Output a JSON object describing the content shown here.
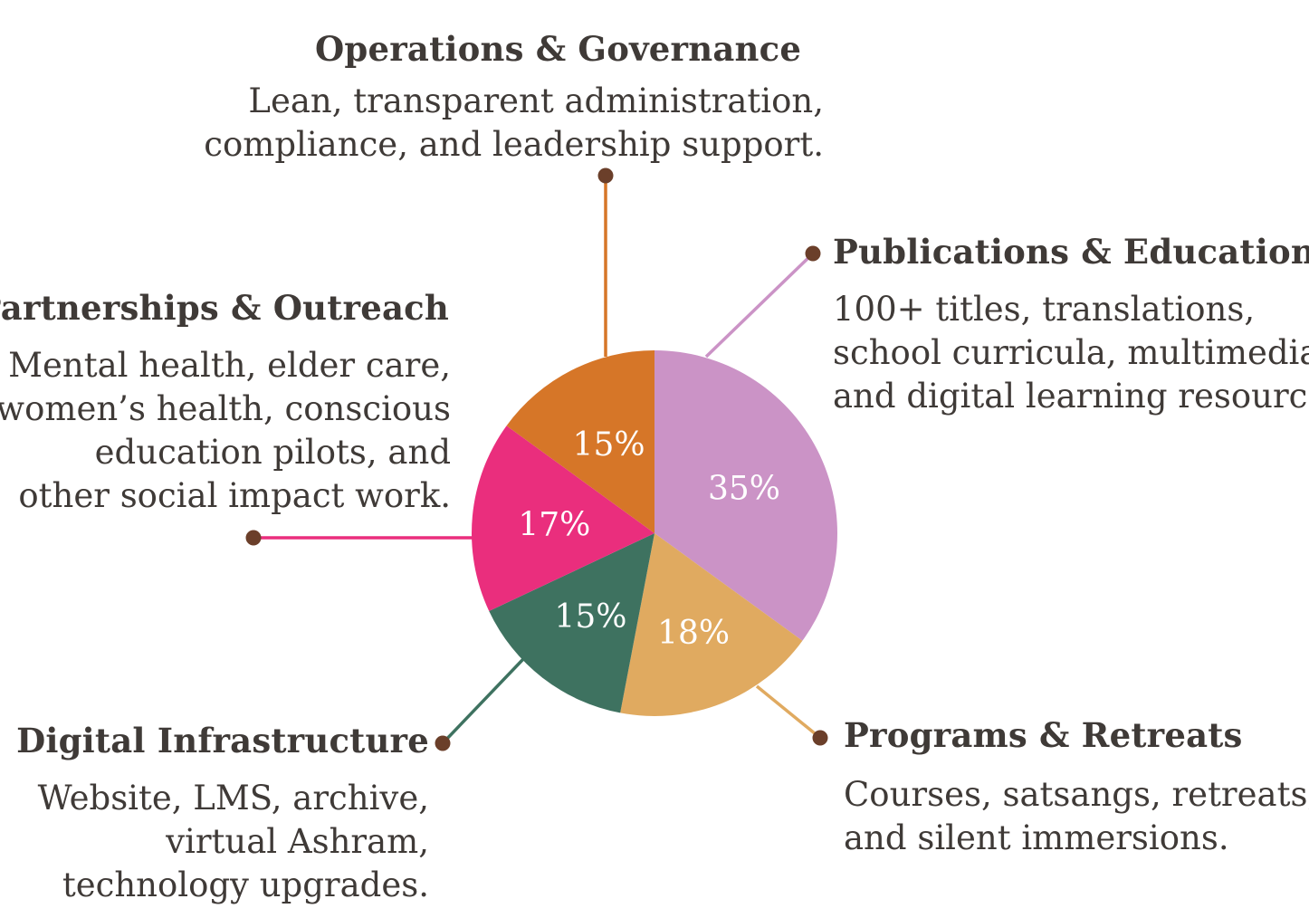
{
  "chart_data": {
    "type": "pie",
    "categories": [
      "Publications & Education",
      "Programs & Retreats",
      "Digital Infrastructure",
      "Partnerships & Outreach",
      "Operations & Governance"
    ],
    "values": [
      35,
      18,
      15,
      17,
      15
    ],
    "data_labels": [
      "35%",
      "18%",
      "15%",
      "17%",
      "15%"
    ],
    "colors": [
      "#cb93c6",
      "#e0aa60",
      "#3e7260",
      "#ea2e7d",
      "#d67628"
    ],
    "descriptions": [
      [
        "100+ titles, translations,",
        "school curricula, multimedia",
        "and digital learning resources."
      ],
      [
        "Courses, satsangs, retreats,",
        "and silent immersions."
      ],
      [
        "Website, LMS, archive,",
        "virtual Ashram,",
        "technology upgrades."
      ],
      [
        "Mental health, elder care,",
        "women’s health, conscious",
        "education pilots, and",
        "other social impact work."
      ],
      [
        "Lean, transparent administration,",
        "compliance, and leadership support."
      ]
    ]
  },
  "style": {
    "text_color": "#3f3a37",
    "dot_color": "#6b3f2a",
    "label_color": "#ffffff"
  }
}
